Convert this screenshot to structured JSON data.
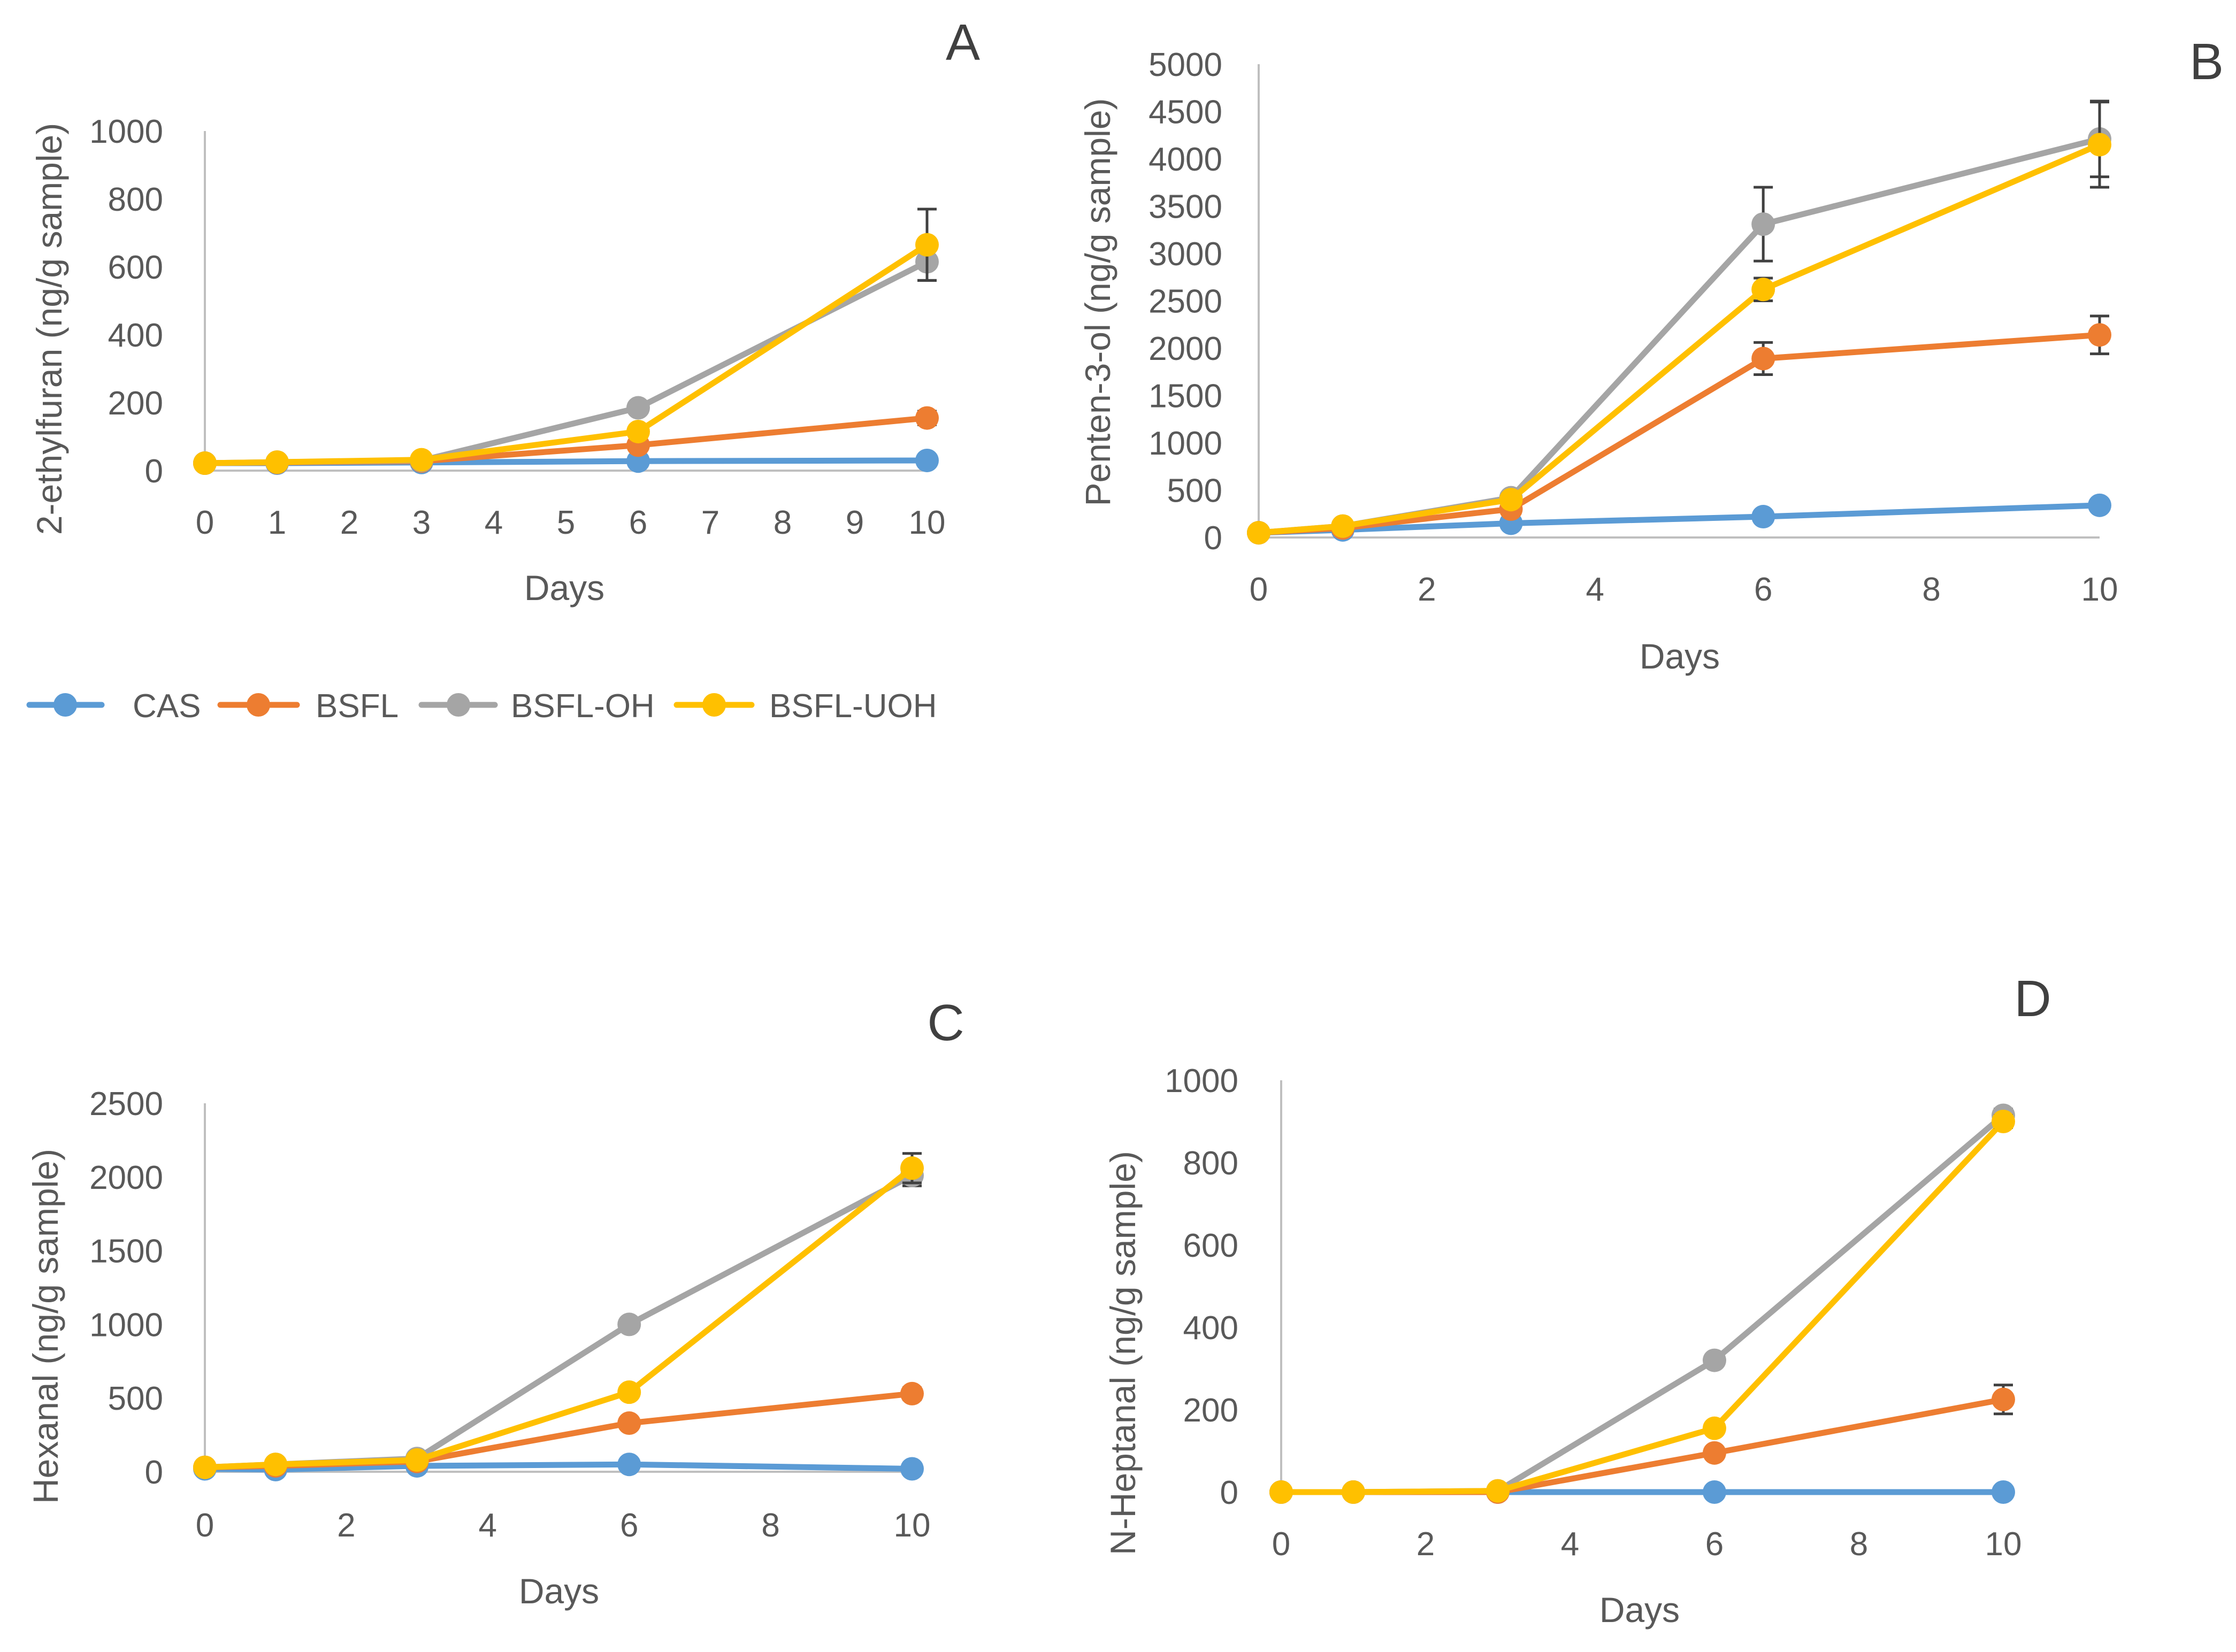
{
  "legend": [
    {
      "name": "CAS",
      "color": "#5b9bd5"
    },
    {
      "name": "BSFL",
      "color": "#ed7d31"
    },
    {
      "name": "BSFL-OH",
      "color": "#a5a5a5"
    },
    {
      "name": "BSFL-UOH",
      "color": "#ffc000"
    }
  ],
  "chart_data": [
    {
      "type": "line",
      "panel": "A",
      "xlabel": "Days",
      "ylabel": "2-ethylfuran (ng/g sample)",
      "x_axis_kind": "category",
      "x_categories": [
        "0",
        "1",
        "2",
        "3",
        "4",
        "5",
        "6",
        "7",
        "8",
        "9",
        "10"
      ],
      "ylim": [
        0,
        1000
      ],
      "yticks": [
        0,
        200,
        400,
        600,
        800,
        1000
      ],
      "grid": false,
      "x": [
        0,
        1,
        3,
        6,
        10
      ],
      "series": [
        {
          "name": "CAS",
          "values": [
            22,
            22,
            24,
            28,
            30
          ]
        },
        {
          "name": "BSFL",
          "values": [
            22,
            24,
            28,
            75,
            155
          ],
          "errors": [
            null,
            null,
            null,
            null,
            20
          ]
        },
        {
          "name": "BSFL-OH",
          "values": [
            22,
            25,
            30,
            185,
            615
          ],
          "errors": [
            null,
            null,
            null,
            null,
            55
          ]
        },
        {
          "name": "BSFL-UOH",
          "values": [
            22,
            25,
            32,
            115,
            665
          ],
          "errors": [
            null,
            null,
            null,
            null,
            105
          ]
        }
      ]
    },
    {
      "type": "line",
      "panel": "B",
      "xlabel": "Days",
      "ylabel": "Penten-3-ol (ng/g sample)",
      "x_axis_kind": "linear",
      "xlim": [
        0,
        10
      ],
      "xticks": [
        0,
        2,
        4,
        6,
        8,
        10
      ],
      "ylim": [
        0,
        5000
      ],
      "yticks": [
        0,
        500,
        1000,
        1500,
        2000,
        2500,
        3000,
        3500,
        4000,
        4500,
        5000
      ],
      "grid": false,
      "x": [
        0,
        1,
        3,
        6,
        10
      ],
      "series": [
        {
          "name": "CAS",
          "values": [
            50,
            80,
            150,
            220,
            340
          ]
        },
        {
          "name": "BSFL",
          "values": [
            50,
            100,
            300,
            1890,
            2140
          ],
          "errors": [
            null,
            null,
            null,
            170,
            200
          ]
        },
        {
          "name": "BSFL-OH",
          "values": [
            50,
            120,
            420,
            3310,
            4210
          ],
          "errors": [
            null,
            null,
            null,
            390,
            400
          ]
        },
        {
          "name": "BSFL-UOH",
          "values": [
            50,
            120,
            400,
            2620,
            4150
          ],
          "errors": [
            null,
            null,
            null,
            120,
            450
          ]
        }
      ]
    },
    {
      "type": "line",
      "panel": "C",
      "xlabel": "Days",
      "ylabel": "Hexanal (ng/g sample)",
      "x_axis_kind": "linear",
      "xlim": [
        0,
        10
      ],
      "xticks": [
        0,
        2,
        4,
        6,
        8,
        10
      ],
      "ylim": [
        0,
        2500
      ],
      "yticks": [
        0,
        500,
        1000,
        1500,
        2000,
        2500
      ],
      "grid": false,
      "x": [
        0,
        1,
        3,
        6,
        10
      ],
      "series": [
        {
          "name": "CAS",
          "values": [
            20,
            15,
            40,
            50,
            20
          ]
        },
        {
          "name": "BSFL",
          "values": [
            30,
            40,
            70,
            330,
            530
          ],
          "errors": [
            null,
            null,
            null,
            null,
            40
          ]
        },
        {
          "name": "BSFL-OH",
          "values": [
            30,
            50,
            90,
            1000,
            2010
          ],
          "errors": [
            null,
            null,
            null,
            null,
            70
          ]
        },
        {
          "name": "BSFL-UOH",
          "values": [
            30,
            50,
            80,
            540,
            2060
          ],
          "errors": [
            null,
            null,
            null,
            null,
            100
          ]
        }
      ]
    },
    {
      "type": "line",
      "panel": "D",
      "xlabel": "Days",
      "ylabel": "N-Heptanal (ng/g sample)",
      "x_axis_kind": "linear",
      "xlim": [
        0,
        10
      ],
      "xticks": [
        0,
        2,
        4,
        6,
        8,
        10
      ],
      "ylim": [
        0,
        1000
      ],
      "yticks": [
        0,
        200,
        400,
        600,
        800,
        1000
      ],
      "grid": false,
      "x": [
        0,
        1,
        3,
        6,
        10
      ],
      "series": [
        {
          "name": "CAS",
          "values": [
            0,
            0,
            0,
            0,
            0
          ]
        },
        {
          "name": "BSFL",
          "values": [
            0,
            0,
            0,
            95,
            225
          ],
          "errors": [
            null,
            null,
            null,
            null,
            35
          ]
        },
        {
          "name": "BSFL-OH",
          "values": [
            0,
            0,
            3,
            320,
            915
          ],
          "errors": [
            null,
            null,
            null,
            null,
            15
          ]
        },
        {
          "name": "BSFL-UOH",
          "values": [
            0,
            0,
            3,
            155,
            900
          ],
          "errors": [
            null,
            null,
            null,
            null,
            15
          ]
        }
      ]
    }
  ]
}
